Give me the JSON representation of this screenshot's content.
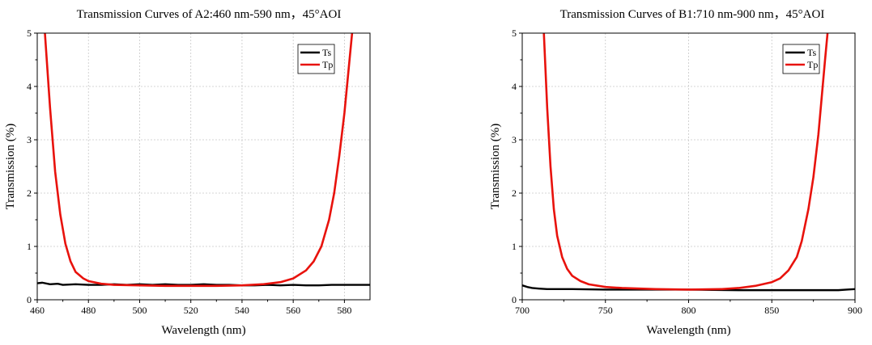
{
  "chart_data": [
    {
      "type": "line",
      "title": "Transmission Curves of A2:460 nm-590 nm，45°AOI",
      "xlabel": "Wavelength (nm)",
      "ylabel": "Transmission (%)",
      "xlim": [
        460,
        590
      ],
      "ylim": [
        0,
        5
      ],
      "xticks": [
        460,
        480,
        500,
        520,
        540,
        560,
        580
      ],
      "yticks": [
        0,
        1,
        2,
        3,
        4,
        5
      ],
      "grid": true,
      "legend": "top-right",
      "colors": {
        "Ts": "#000000",
        "Tp": "#e8120c"
      },
      "series": [
        {
          "name": "Ts",
          "x": [
            460,
            462,
            465,
            468,
            470,
            475,
            480,
            485,
            490,
            495,
            500,
            505,
            510,
            515,
            520,
            525,
            530,
            535,
            540,
            545,
            550,
            555,
            560,
            565,
            570,
            575,
            580,
            585,
            590
          ],
          "y": [
            0.31,
            0.32,
            0.29,
            0.3,
            0.28,
            0.29,
            0.28,
            0.28,
            0.29,
            0.28,
            0.29,
            0.28,
            0.29,
            0.28,
            0.28,
            0.29,
            0.28,
            0.28,
            0.27,
            0.27,
            0.28,
            0.27,
            0.28,
            0.27,
            0.27,
            0.28,
            0.28,
            0.28,
            0.28
          ]
        },
        {
          "name": "Tp",
          "x": [
            463,
            465,
            467,
            469,
            471,
            473,
            475,
            478,
            480,
            485,
            490,
            500,
            510,
            520,
            530,
            540,
            548,
            555,
            560,
            565,
            568,
            571,
            574,
            576,
            578,
            580,
            582,
            583
          ],
          "y": [
            5.0,
            3.6,
            2.4,
            1.6,
            1.05,
            0.72,
            0.52,
            0.4,
            0.35,
            0.3,
            0.28,
            0.27,
            0.26,
            0.26,
            0.26,
            0.27,
            0.29,
            0.33,
            0.4,
            0.55,
            0.72,
            1.0,
            1.5,
            2.0,
            2.7,
            3.5,
            4.5,
            5.0
          ]
        }
      ]
    },
    {
      "type": "line",
      "title": "Transmission Curves of B1:710 nm-900 nm，45°AOI",
      "xlabel": "Wavelength (nm)",
      "ylabel": "Transmission (%)",
      "xlim": [
        700,
        900
      ],
      "ylim": [
        0,
        5
      ],
      "xticks": [
        700,
        750,
        800,
        850,
        900
      ],
      "yticks": [
        0,
        1,
        2,
        3,
        4,
        5
      ],
      "grid": true,
      "legend": "top-right",
      "colors": {
        "Ts": "#000000",
        "Tp": "#e8120c"
      },
      "series": [
        {
          "name": "Ts",
          "x": [
            700,
            703,
            706,
            710,
            715,
            720,
            730,
            750,
            770,
            800,
            830,
            860,
            880,
            890,
            895,
            900
          ],
          "y": [
            0.27,
            0.24,
            0.22,
            0.21,
            0.2,
            0.2,
            0.2,
            0.19,
            0.19,
            0.19,
            0.18,
            0.18,
            0.18,
            0.18,
            0.19,
            0.2
          ]
        },
        {
          "name": "Tp",
          "x": [
            713,
            715,
            717,
            719,
            721,
            724,
            727,
            730,
            735,
            740,
            750,
            760,
            780,
            800,
            820,
            830,
            840,
            850,
            855,
            860,
            865,
            868,
            872,
            875,
            878,
            880,
            882,
            883.5
          ],
          "y": [
            5.0,
            3.6,
            2.5,
            1.7,
            1.2,
            0.8,
            0.58,
            0.45,
            0.35,
            0.29,
            0.24,
            0.22,
            0.2,
            0.19,
            0.2,
            0.22,
            0.26,
            0.33,
            0.4,
            0.55,
            0.8,
            1.1,
            1.7,
            2.3,
            3.1,
            3.8,
            4.5,
            5.0
          ]
        }
      ]
    }
  ]
}
